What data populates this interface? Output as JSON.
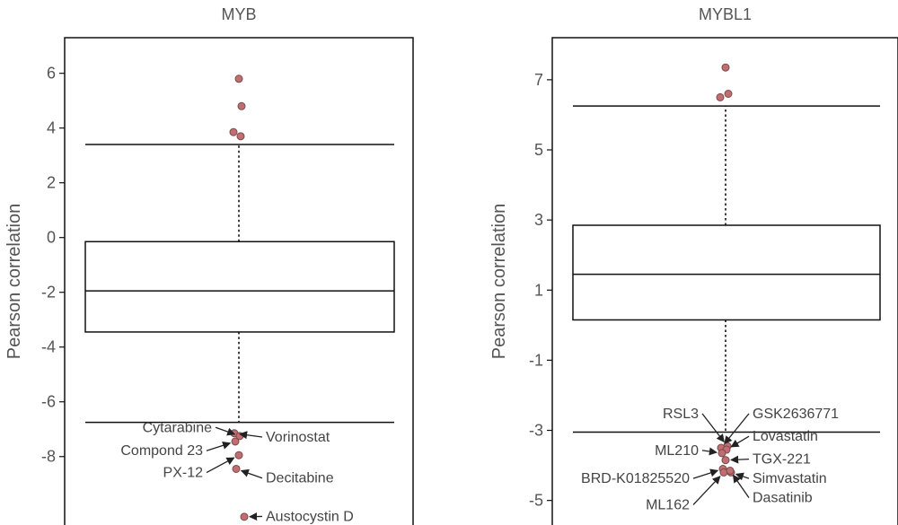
{
  "chart_data": [
    {
      "type": "box",
      "title": "MYB",
      "ylabel": "Pearson correlation",
      "ylim": [
        -10.5,
        7.3
      ],
      "yticks": [
        6,
        4,
        2,
        0,
        -2,
        -4,
        -6,
        -8
      ],
      "ytick_labels": [
        "6",
        "4",
        "2",
        "0",
        "-2",
        "-4",
        "-6",
        "-8"
      ],
      "box": {
        "q1": -3.45,
        "median": -1.95,
        "q3": -0.15,
        "whisker_low": -6.75,
        "whisker_high": 3.4
      },
      "outliers": [
        {
          "y": 5.8,
          "label": ""
        },
        {
          "y": 4.8,
          "label": ""
        },
        {
          "y": 3.85,
          "label": ""
        },
        {
          "y": 3.7,
          "label": ""
        },
        {
          "y": -7.15,
          "label": "Vorinostat",
          "side": "right",
          "ly": -7.45
        },
        {
          "y": -7.25,
          "label": "Cytarabine",
          "side": "left",
          "ly": -7.1
        },
        {
          "y": -7.45,
          "label": "Compond 23",
          "side": "left",
          "ly": -7.95
        },
        {
          "y": -7.95,
          "label": "PX-12",
          "side": "left",
          "ly": -8.75
        },
        {
          "y": -8.45,
          "label": "Decitabine",
          "side": "right",
          "ly": -8.95
        },
        {
          "y": -10.2,
          "label": "Austocystin D",
          "side": "right",
          "ly": -10.35
        }
      ],
      "point_color": "#c06e70"
    },
    {
      "type": "box",
      "title": "MYBL1",
      "ylabel": "Pearson correlation",
      "ylim": [
        -5.7,
        8.2
      ],
      "yticks": [
        7,
        5,
        3,
        1,
        -1,
        -3,
        -5
      ],
      "ytick_labels": [
        "7",
        "5",
        "3",
        "1",
        "-1",
        "-3",
        "-5"
      ],
      "box": {
        "q1": 0.15,
        "median": 1.45,
        "q3": 2.85,
        "whisker_low": -3.05,
        "whisker_high": 6.25
      },
      "outliers": [
        {
          "y": 7.35,
          "label": ""
        },
        {
          "y": 6.6,
          "label": ""
        },
        {
          "y": 6.5,
          "label": ""
        },
        {
          "y": -3.45,
          "label": "RSL3",
          "side": "left",
          "ly": -2.65
        },
        {
          "y": -3.5,
          "label": "GSK2636771",
          "side": "right",
          "ly": -2.65
        },
        {
          "y": -3.55,
          "label": "Lovastatin",
          "side": "right",
          "ly": -3.3
        },
        {
          "y": -3.65,
          "label": "ML210",
          "side": "left",
          "ly": -3.7
        },
        {
          "y": -3.85,
          "label": "TGX-221",
          "side": "right",
          "ly": -3.95
        },
        {
          "y": -4.1,
          "label": "BRD-K01825520",
          "side": "left",
          "ly": -4.5
        },
        {
          "y": -4.2,
          "label": "Simvastatin",
          "side": "right",
          "ly": -4.5
        },
        {
          "y": -4.2,
          "label": "ML162",
          "side": "left",
          "ly": -5.25
        },
        {
          "y": -4.15,
          "label": "Dasatinib",
          "side": "right",
          "ly": -5.05
        }
      ],
      "point_color": "#c06e70"
    }
  ]
}
